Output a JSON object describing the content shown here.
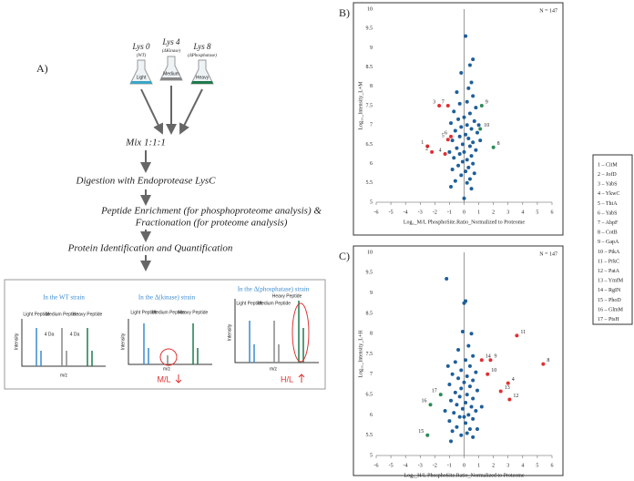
{
  "diagram": {
    "label": "A)",
    "strains": [
      {
        "name": "Lys 0",
        "sub": "(WT)",
        "flask": "Light"
      },
      {
        "name": "Lys 4",
        "sub": "(ΔKinase)",
        "flask": "Medium"
      },
      {
        "name": "Lys 8",
        "sub": "(ΔPhosphatase)",
        "flask": "Heavy"
      }
    ],
    "steps": [
      "Mix 1:1:1",
      "Digestion with Endoprotease LysC",
      "Peptide Enrichment (for phosphoproteome analysis) &",
      "Fractionation (for proteome analysis)",
      "Protein Identification and Quantification"
    ],
    "spectra": [
      {
        "title": "In the WT strain",
        "ylabel": "Intensity",
        "xlabel": "m/z",
        "peaks": [
          "Light Peptide",
          "Medium Peptide",
          "Heavy Peptide"
        ],
        "gaps": [
          "4 Da",
          "4 Da"
        ]
      },
      {
        "title": "In the Δ(kinase) strain",
        "ylabel": "Intensity",
        "xlabel": "m/z",
        "peaks": [
          "Light Peptide",
          "Medium Peptide",
          "Heavy Peptide"
        ],
        "ratio": "M/L"
      },
      {
        "title": "In the Δ(phosphatase) strain",
        "ylabel": "Intensity",
        "xlabel": "m/z",
        "peaks": [
          "Light Peptide",
          "Medium Peptide",
          "Heavy Peptide"
        ],
        "ratio": "H/L"
      }
    ]
  },
  "legend_box": [
    "1 – CitM",
    "2 – JofD",
    "3 – YabS",
    "4 – YkwC",
    "5 – ThiA",
    "6 – YabS",
    "7 – AbpF",
    "8 – CotB",
    "9 – GapA",
    "10 – PtkA",
    "11 – PrkC",
    "12 – PatA",
    "13 – YmfM",
    "14 – RgIN",
    "15 – PhoD",
    "16 – GlmM",
    "17 – PtsH"
  ],
  "chart_data": [
    {
      "type": "scatter",
      "title": "B)",
      "note": "N = 147",
      "xlabel": "Log₂_M/L PhosphoSite.Ratio_Normalized to Proteome",
      "ylabel": "Log₁₀_Intensity_L+M",
      "xlim": [
        -6,
        6
      ],
      "ylim": [
        5,
        10
      ],
      "xticks": [
        -6,
        -5,
        -4,
        -3,
        -2,
        -1,
        0,
        1,
        2,
        3,
        4,
        5,
        6
      ],
      "yticks": [
        5,
        5.5,
        6,
        6.5,
        7,
        7.5,
        8,
        8.5,
        9,
        9.5,
        10
      ],
      "series": [
        {
          "color": "#1f5f9a",
          "x": [
            0.1,
            0.6,
            0.4,
            -0.2,
            0.5,
            0.3,
            -0.5,
            0.6,
            0.2,
            -0.3,
            0.8,
            -0.7,
            0.4,
            0.0,
            -0.4,
            0.7,
            -0.9,
            0.2,
            -0.2,
            0.5,
            -0.6,
            0.9,
            0.1,
            -0.3,
            0.3,
            -0.8,
            0.6,
            -0.1,
            0.4,
            -0.5,
            0.8,
            0.0,
            -0.3,
            0.5,
            -0.7,
            0.2,
            -0.1,
            0.6,
            -0.4,
            0.3,
            -0.8,
            0.1,
            0.7,
            -0.2,
            0.4,
            -0.6,
            0.2,
            -0.9,
            0.5,
            0.0,
            1.0,
            -1.0,
            1.1
          ],
          "values": [
            9.3,
            8.7,
            8.55,
            8.35,
            8.1,
            7.95,
            7.85,
            7.75,
            7.6,
            7.55,
            7.45,
            7.35,
            7.3,
            7.2,
            7.15,
            7.1,
            7.05,
            7.0,
            6.95,
            6.9,
            6.85,
            6.8,
            6.75,
            6.7,
            6.65,
            6.6,
            6.55,
            6.5,
            6.45,
            6.4,
            6.35,
            6.3,
            6.25,
            6.2,
            6.15,
            6.1,
            6.05,
            6.0,
            5.95,
            5.9,
            5.85,
            5.8,
            5.75,
            5.7,
            5.6,
            5.55,
            5.5,
            5.4,
            5.35,
            5.1,
            7.0,
            6.3,
            6.6
          ]
        },
        {
          "color": "#e03030",
          "labels": [
            "1",
            "2",
            "3",
            "4",
            "5",
            "6",
            "7"
          ],
          "x": [
            -2.5,
            -2.2,
            -1.7,
            -1.3,
            -1.1,
            -0.9,
            -1.1
          ],
          "values": [
            6.45,
            6.3,
            7.5,
            6.25,
            6.62,
            6.7,
            7.5
          ]
        },
        {
          "color": "#2e8b57",
          "labels": [
            "8",
            "9",
            "10"
          ],
          "x": [
            2.0,
            1.2,
            1.1
          ],
          "values": [
            6.42,
            7.5,
            6.9
          ]
        }
      ]
    },
    {
      "type": "scatter",
      "title": "C)",
      "note": "N = 147",
      "xlabel": "Log₂_H/L PhosphoSite.Ratio_Normalized to Proteome",
      "ylabel": "Log₁₀_Intensity_L+H",
      "xlim": [
        -6,
        6
      ],
      "ylim": [
        5,
        10
      ],
      "xticks": [
        -6,
        -5,
        -4,
        -3,
        -2,
        -1,
        0,
        1,
        2,
        3,
        4,
        5,
        6
      ],
      "yticks": [
        5,
        5.5,
        6,
        6.5,
        7,
        7.5,
        8,
        8.5,
        9,
        9.5,
        10
      ],
      "series": [
        {
          "color": "#1f5f9a",
          "x": [
            -1.2,
            0.1,
            0.0,
            -0.1,
            0.5,
            0.3,
            -0.4,
            0.6,
            0.1,
            -0.6,
            0.4,
            -0.2,
            0.8,
            -0.8,
            0.2,
            -0.4,
            0.6,
            0.0,
            -1.0,
            0.4,
            -0.2,
            0.9,
            -0.6,
            0.2,
            -0.3,
            0.6,
            -0.9,
            0.1,
            -0.5,
            0.5,
            -0.1,
            0.8,
            -0.7,
            0.3,
            -0.3,
            0.6,
            -1.0,
            0.1,
            -0.5,
            0.4,
            -0.8,
            0.2,
            -0.2,
            0.6,
            -0.9,
            0.0,
            0.9,
            -1.3,
            1.2,
            -1.1
          ],
          "values": [
            9.35,
            8.8,
            8.75,
            8.05,
            8.0,
            7.7,
            7.6,
            7.45,
            7.35,
            7.3,
            7.2,
            7.1,
            7.05,
            7.0,
            6.95,
            6.9,
            6.85,
            6.8,
            6.75,
            6.7,
            6.65,
            6.6,
            6.55,
            6.5,
            6.45,
            6.4,
            6.35,
            6.3,
            6.25,
            6.2,
            6.15,
            6.1,
            6.05,
            6.0,
            5.95,
            5.9,
            5.85,
            5.8,
            5.7,
            5.65,
            5.6,
            5.55,
            5.5,
            5.45,
            5.35,
            5.95,
            5.65,
            6.1,
            6.2,
            7.2
          ]
        },
        {
          "color": "#e03030",
          "labels": [
            "11",
            "8",
            "14",
            "9",
            "10",
            "4",
            "13",
            "12"
          ],
          "x": [
            3.6,
            5.4,
            1.2,
            1.8,
            1.6,
            3.0,
            2.5,
            3.1
          ],
          "values": [
            7.95,
            7.25,
            7.35,
            7.35,
            7.0,
            6.78,
            6.58,
            6.38
          ]
        },
        {
          "color": "#2e8b57",
          "labels": [
            "17",
            "16",
            "15"
          ],
          "x": [
            -1.6,
            -2.3,
            -2.5
          ],
          "values": [
            6.5,
            6.25,
            5.5
          ]
        }
      ]
    }
  ]
}
